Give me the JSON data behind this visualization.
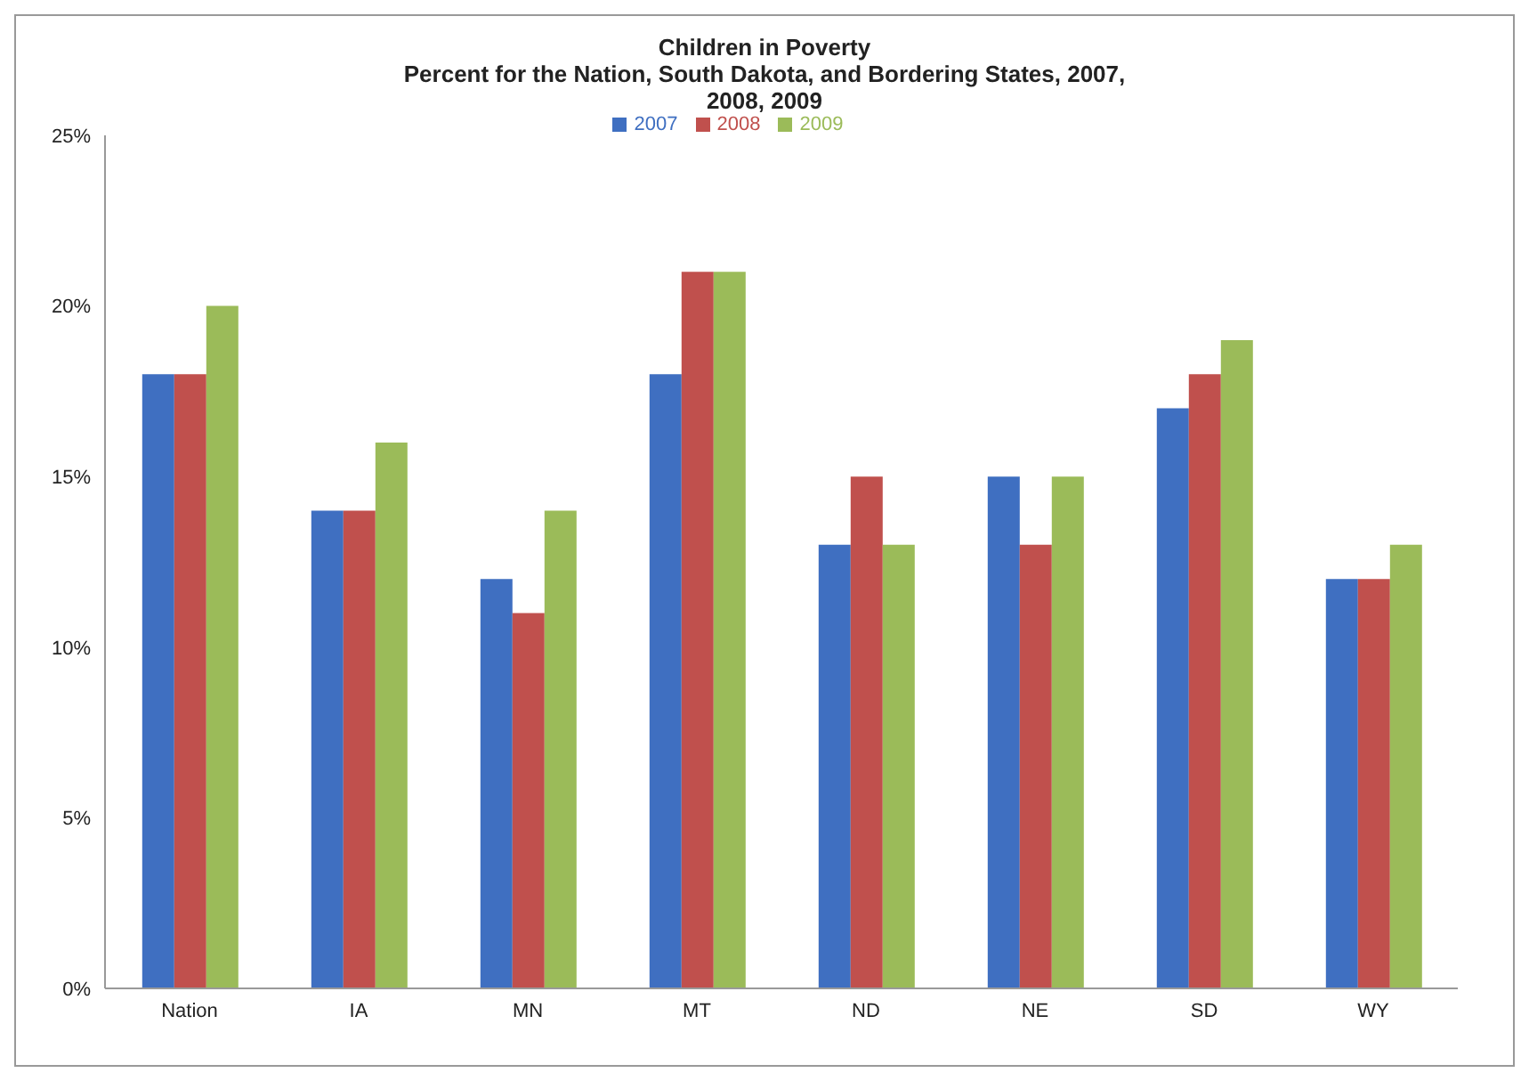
{
  "chart_data": {
    "type": "bar",
    "title": "Children in Poverty",
    "subtitle": "Percent for the Nation, South Dakota, and Bordering States, 2007, 2008, 2009",
    "categories": [
      "Nation",
      "IA",
      "MN",
      "MT",
      "ND",
      "NE",
      "SD",
      "WY"
    ],
    "series": [
      {
        "name": "2007",
        "color": "#3f6fc1",
        "values": [
          18,
          14,
          12,
          18,
          13,
          15,
          17,
          12
        ]
      },
      {
        "name": "2008",
        "color": "#c0504d",
        "values": [
          18,
          14,
          11,
          21,
          15,
          13,
          18,
          12
        ]
      },
      {
        "name": "2009",
        "color": "#9bbb59",
        "values": [
          20,
          16,
          14,
          21,
          13,
          15,
          19,
          13
        ]
      }
    ],
    "ylim": [
      0,
      25
    ],
    "yticks": [
      {
        "value": 0,
        "label": "0%"
      },
      {
        "value": 5,
        "label": "5%"
      },
      {
        "value": 10,
        "label": "10%"
      },
      {
        "value": 15,
        "label": "15%"
      },
      {
        "value": 20,
        "label": "20%"
      },
      {
        "value": 25,
        "label": "25%"
      }
    ],
    "grid": false,
    "legend": "top"
  }
}
